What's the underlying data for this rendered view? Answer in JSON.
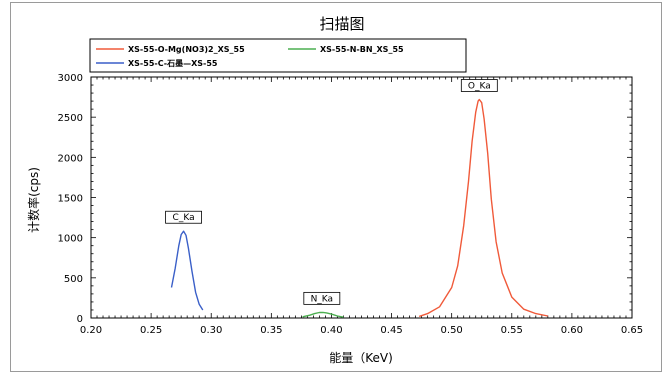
{
  "chart_data": {
    "type": "line",
    "title": "扫描图",
    "xlabel": "能量（KeV)",
    "ylabel": "计数率(cps)",
    "xlim": [
      0.2,
      0.65
    ],
    "ylim": [
      0,
      3000
    ],
    "xticks": [
      "0.20",
      "0.25",
      "0.30",
      "0.35",
      "0.40",
      "0.45",
      "0.50",
      "0.55",
      "0.60",
      "0.65"
    ],
    "yticks": [
      "0",
      "500",
      "1000",
      "1500",
      "2000",
      "2500",
      "3000"
    ],
    "legend": [
      {
        "name": "XS-55-O-Mg(NO3)2_XS_55",
        "color": "#f05a3a"
      },
      {
        "name": "XS-55-N-BN_XS_55",
        "color": "#4caf50"
      },
      {
        "name": "XS-55-C-石墨—XS-55",
        "color": "#3a5fc8"
      }
    ],
    "peaks": [
      {
        "label": "C_Ka",
        "x": 0.277,
        "y": 1080
      },
      {
        "label": "N_Ka",
        "x": 0.392,
        "y": 70
      },
      {
        "label": "O_Ka",
        "x": 0.523,
        "y": 2720
      }
    ],
    "series": [
      {
        "color": "#3a5fc8",
        "x": [
          0.267,
          0.27,
          0.273,
          0.275,
          0.277,
          0.279,
          0.281,
          0.284,
          0.287,
          0.29,
          0.293
        ],
        "y": [
          380,
          620,
          900,
          1040,
          1080,
          1030,
          870,
          580,
          320,
          170,
          100
        ]
      },
      {
        "color": "#4caf50",
        "x": [
          0.376,
          0.382,
          0.386,
          0.39,
          0.393,
          0.396,
          0.4,
          0.405,
          0.41
        ],
        "y": [
          15,
          35,
          55,
          68,
          70,
          64,
          48,
          25,
          10
        ]
      },
      {
        "color": "#f05a3a",
        "x": [
          0.473,
          0.48,
          0.49,
          0.5,
          0.505,
          0.51,
          0.514,
          0.517,
          0.52,
          0.522,
          0.523,
          0.525,
          0.527,
          0.53,
          0.533,
          0.537,
          0.542,
          0.55,
          0.56,
          0.57,
          0.58
        ],
        "y": [
          20,
          55,
          140,
          380,
          650,
          1150,
          1700,
          2200,
          2560,
          2700,
          2720,
          2680,
          2480,
          2050,
          1480,
          950,
          560,
          260,
          110,
          55,
          25
        ]
      }
    ]
  }
}
